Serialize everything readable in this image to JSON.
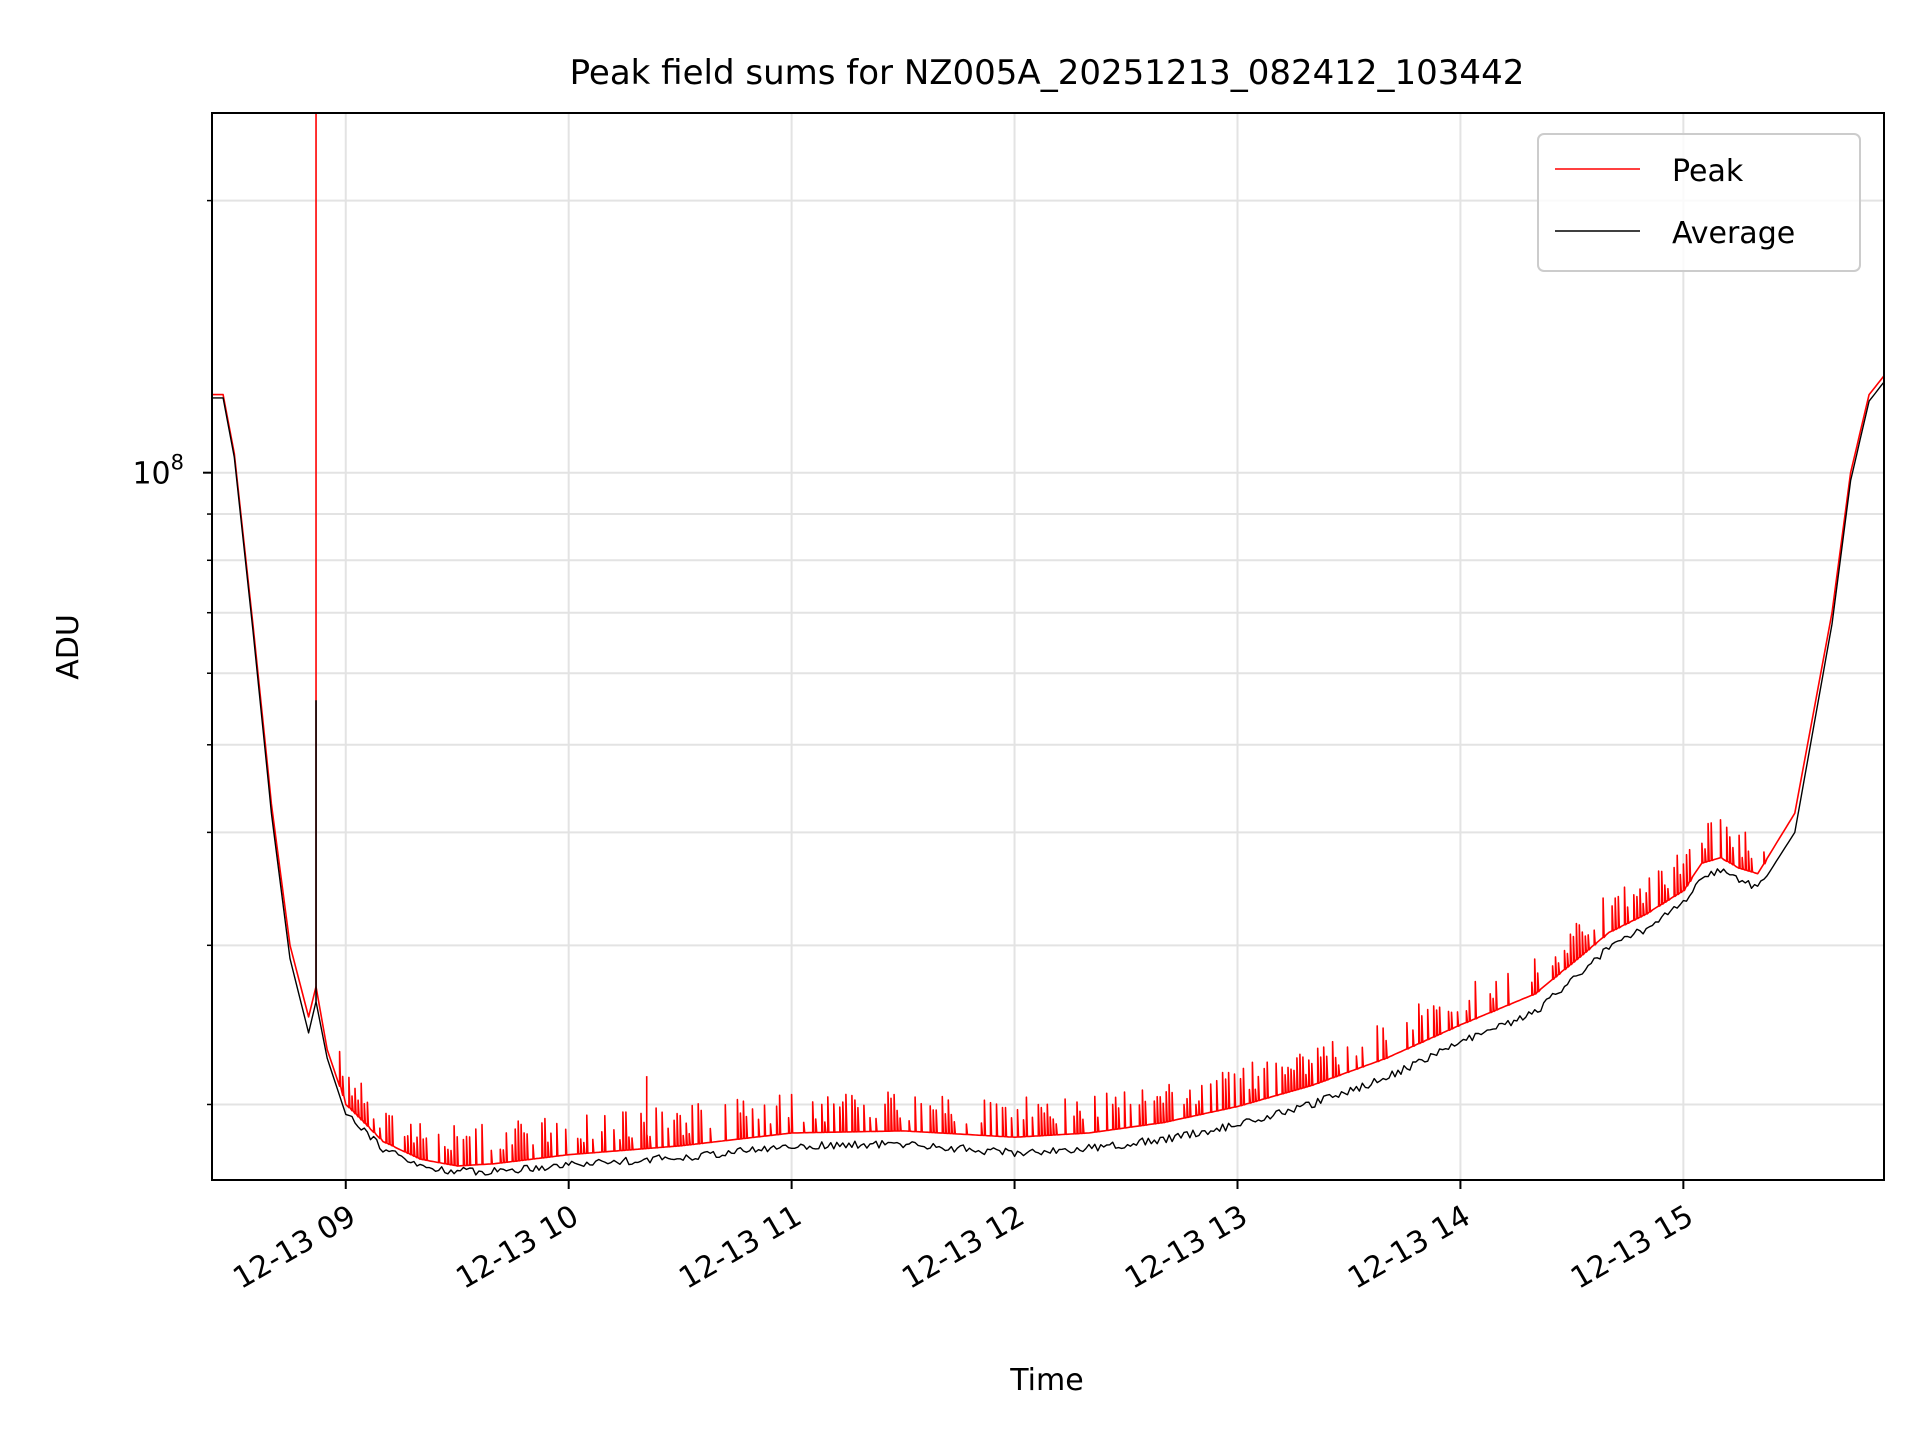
{
  "chart_data": {
    "type": "line",
    "title": "Peak field sums for NZ005A_20251213_082412_103442",
    "xlabel": "Time",
    "ylabel": "ADU",
    "y_scale": "log",
    "grid": true,
    "legend_position": "upper right",
    "x_ticks": [
      {
        "value": "2025-12-13T09:00",
        "label": "12-13 09"
      },
      {
        "value": "2025-12-13T10:00",
        "label": "12-13 10"
      },
      {
        "value": "2025-12-13T11:00",
        "label": "12-13 11"
      },
      {
        "value": "2025-12-13T12:00",
        "label": "12-13 12"
      },
      {
        "value": "2025-12-13T13:00",
        "label": "12-13 13"
      },
      {
        "value": "2025-12-13T14:00",
        "label": "12-13 14"
      },
      {
        "value": "2025-12-13T15:00",
        "label": "12-13 15"
      }
    ],
    "y_tick_labels": [
      {
        "value": 100000000,
        "base": "10",
        "exponent": "8"
      }
    ],
    "xlim": [
      "2025-12-13T08:24",
      "2025-12-13T15:54"
    ],
    "ylim": [
      16500000,
      250000000
    ],
    "series": [
      {
        "name": "Peak",
        "color": "#ff0000",
        "spikes": true,
        "x": [
          "2025-12-13T08:24",
          "2025-12-13T08:27",
          "2025-12-13T08:30",
          "2025-12-13T08:35",
          "2025-12-13T08:40",
          "2025-12-13T08:45",
          "2025-12-13T08:50",
          "2025-12-13T08:52",
          "2025-12-13T08:55",
          "2025-12-13T09:00",
          "2025-12-13T09:10",
          "2025-12-13T09:20",
          "2025-12-13T09:30",
          "2025-12-13T09:40",
          "2025-12-13T10:00",
          "2025-12-13T10:30",
          "2025-12-13T11:00",
          "2025-12-13T11:30",
          "2025-12-13T12:00",
          "2025-12-13T12:20",
          "2025-12-13T12:40",
          "2025-12-13T13:00",
          "2025-12-13T13:20",
          "2025-12-13T13:40",
          "2025-12-13T14:00",
          "2025-12-13T14:20",
          "2025-12-13T14:40",
          "2025-12-13T14:50",
          "2025-12-13T15:00",
          "2025-12-13T15:05",
          "2025-12-13T15:10",
          "2025-12-13T15:15",
          "2025-12-13T15:20",
          "2025-12-13T15:30",
          "2025-12-13T15:40",
          "2025-12-13T15:45",
          "2025-12-13T15:50",
          "2025-12-13T15:54"
        ],
        "values": [
          122000000,
          122000000,
          105000000,
          68000000,
          43000000,
          30000000,
          25000000,
          27000000,
          23000000,
          20000000,
          18200000,
          17400000,
          17100000,
          17200000,
          17600000,
          18000000,
          18600000,
          18700000,
          18400000,
          18600000,
          19100000,
          19900000,
          21000000,
          22500000,
          24500000,
          26500000,
          31000000,
          32500000,
          34500000,
          37000000,
          37500000,
          36500000,
          36000000,
          42000000,
          70000000,
          100000000,
          122000000,
          128000000
        ],
        "spike_values": [
          {
            "x": "2025-12-13T08:52",
            "value": 250000000
          },
          {
            "x": "2025-12-13T10:21",
            "value": 21500000
          }
        ]
      },
      {
        "name": "Average",
        "color": "#000000",
        "spikes": false,
        "x": [
          "2025-12-13T08:24",
          "2025-12-13T08:27",
          "2025-12-13T08:30",
          "2025-12-13T08:35",
          "2025-12-13T08:40",
          "2025-12-13T08:45",
          "2025-12-13T08:50",
          "2025-12-13T08:52",
          "2025-12-13T08:55",
          "2025-12-13T09:00",
          "2025-12-13T09:10",
          "2025-12-13T09:20",
          "2025-12-13T09:30",
          "2025-12-13T09:40",
          "2025-12-13T10:00",
          "2025-12-13T10:30",
          "2025-12-13T11:00",
          "2025-12-13T11:30",
          "2025-12-13T12:00",
          "2025-12-13T12:20",
          "2025-12-13T12:40",
          "2025-12-13T13:00",
          "2025-12-13T13:20",
          "2025-12-13T13:40",
          "2025-12-13T14:00",
          "2025-12-13T14:20",
          "2025-12-13T14:40",
          "2025-12-13T14:50",
          "2025-12-13T15:00",
          "2025-12-13T15:05",
          "2025-12-13T15:10",
          "2025-12-13T15:15",
          "2025-12-13T15:20",
          "2025-12-13T15:30",
          "2025-12-13T15:40",
          "2025-12-13T15:45",
          "2025-12-13T15:50",
          "2025-12-13T15:54"
        ],
        "values": [
          121000000,
          121000000,
          104000000,
          67000000,
          42000000,
          29000000,
          24000000,
          26000000,
          22500000,
          19500000,
          17700000,
          16900000,
          16700000,
          16700000,
          17000000,
          17300000,
          17800000,
          17900000,
          17500000,
          17700000,
          18100000,
          18800000,
          19800000,
          21200000,
          23200000,
          25000000,
          29500000,
          31000000,
          33000000,
          35500000,
          36000000,
          35000000,
          34500000,
          40000000,
          68000000,
          98000000,
          120000000,
          126000000
        ],
        "spike_values": [
          {
            "x": "2025-12-13T08:52",
            "value": 56000000
          }
        ]
      }
    ]
  }
}
